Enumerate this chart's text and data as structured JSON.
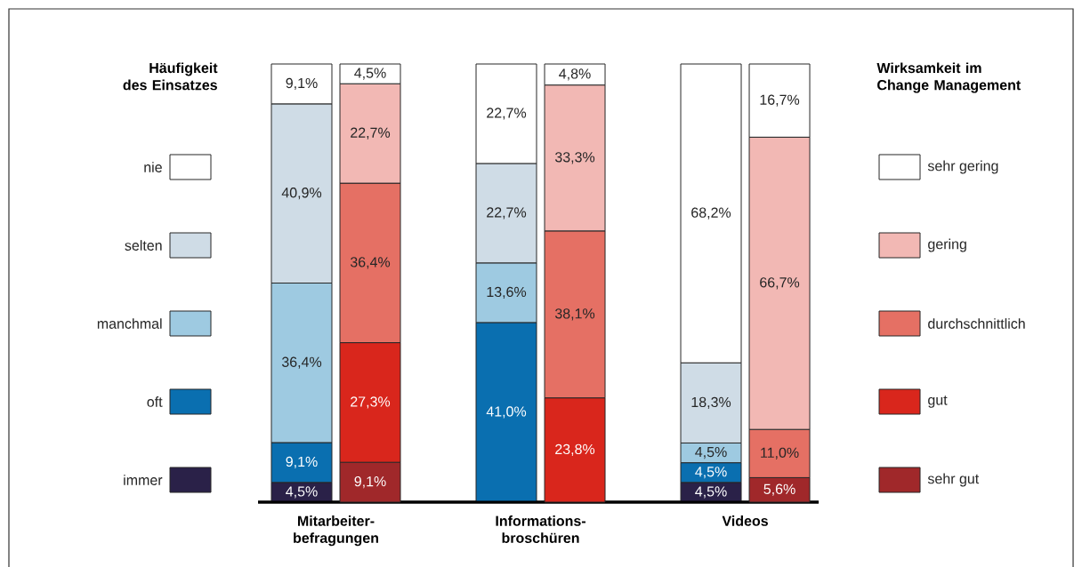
{
  "chart_data": [
    {
      "type": "bar",
      "stacked": true,
      "legend": "left",
      "legend_title": "Häufigkeit des Einsatzes",
      "categories": [
        "Mitarbeiter-befragungen",
        "Informations-broschüren",
        "Videos"
      ],
      "series": [
        {
          "name": "immer",
          "color": "#2a2148",
          "values": [
            4.5,
            null,
            4.5
          ],
          "value_labels": [
            "4,5%",
            null,
            "4,5%"
          ]
        },
        {
          "name": "oft",
          "color": "#0a6fb0",
          "values": [
            9.1,
            41.0,
            4.5
          ],
          "value_labels": [
            "9,1%",
            "41,0%",
            "4,5%"
          ]
        },
        {
          "name": "manchmal",
          "color": "#9ecae1",
          "values": [
            36.4,
            13.6,
            4.5
          ],
          "value_labels": [
            "36,4%",
            "13,6%",
            "4,5%"
          ]
        },
        {
          "name": "selten",
          "color": "#cfdce6",
          "values": [
            40.9,
            22.7,
            18.3
          ],
          "value_labels": [
            "40,9%",
            "22,7%",
            "18,3%"
          ]
        },
        {
          "name": "nie",
          "color": "#ffffff",
          "values": [
            9.1,
            22.7,
            68.2
          ],
          "value_labels": [
            "9,1%",
            "22,7%",
            "68,2%"
          ]
        }
      ]
    },
    {
      "type": "bar",
      "stacked": true,
      "legend": "right",
      "legend_title": "Wirksamkeit im Change Management",
      "categories": [
        null,
        null,
        null
      ],
      "series": [
        {
          "name": "sehr gut",
          "color": "#a0282a",
          "values": [
            9.1,
            null,
            5.6
          ],
          "value_labels": [
            "9,1%",
            null,
            "5,6%"
          ]
        },
        {
          "name": "gut",
          "color": "#d9261c",
          "values": [
            27.3,
            23.8,
            null
          ],
          "value_labels": [
            "27,3%",
            "23,8%",
            null
          ]
        },
        {
          "name": "durchschnittlich",
          "color": "#e57064",
          "values": [
            36.4,
            38.1,
            11.0
          ],
          "value_labels": [
            "36,4%",
            "38,1%",
            "11,0%"
          ]
        },
        {
          "name": "gering",
          "color": "#f2b8b4",
          "values": [
            22.7,
            33.3,
            66.7
          ],
          "value_labels": [
            "22,7%",
            "33,3%",
            "66,7%"
          ]
        },
        {
          "name": "sehr gering",
          "color": "#ffffff",
          "values": [
            4.5,
            4.8,
            16.7
          ],
          "value_labels": [
            "4,5%",
            "4,8%",
            "16,7%"
          ]
        }
      ]
    }
  ]
}
